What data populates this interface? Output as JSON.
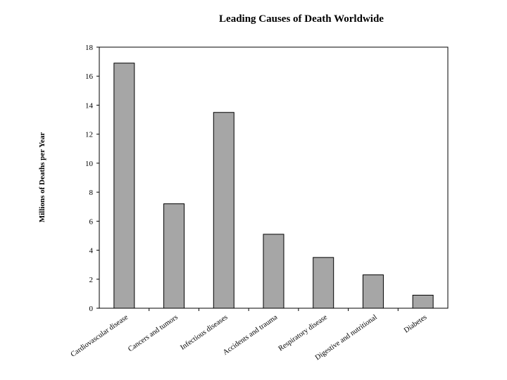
{
  "chart_data": {
    "type": "bar",
    "title": "Leading Causes of Death Worldwide",
    "xlabel": "",
    "ylabel": "Millions of Deaths per Year",
    "ylim": [
      0,
      18
    ],
    "yticks": [
      0,
      2,
      4,
      6,
      8,
      10,
      12,
      14,
      16,
      18
    ],
    "categories": [
      "Cardiovascular disease",
      "Cancers and tumors",
      "Infectious diseases",
      "Accidents and trauma",
      "Respiratory disease",
      "Digestive and nutritional",
      "Diabetes"
    ],
    "values": [
      16.9,
      7.2,
      13.5,
      5.1,
      3.5,
      2.3,
      0.9
    ],
    "bar_color": "#a6a6a6",
    "grid": false,
    "legend": "none"
  }
}
